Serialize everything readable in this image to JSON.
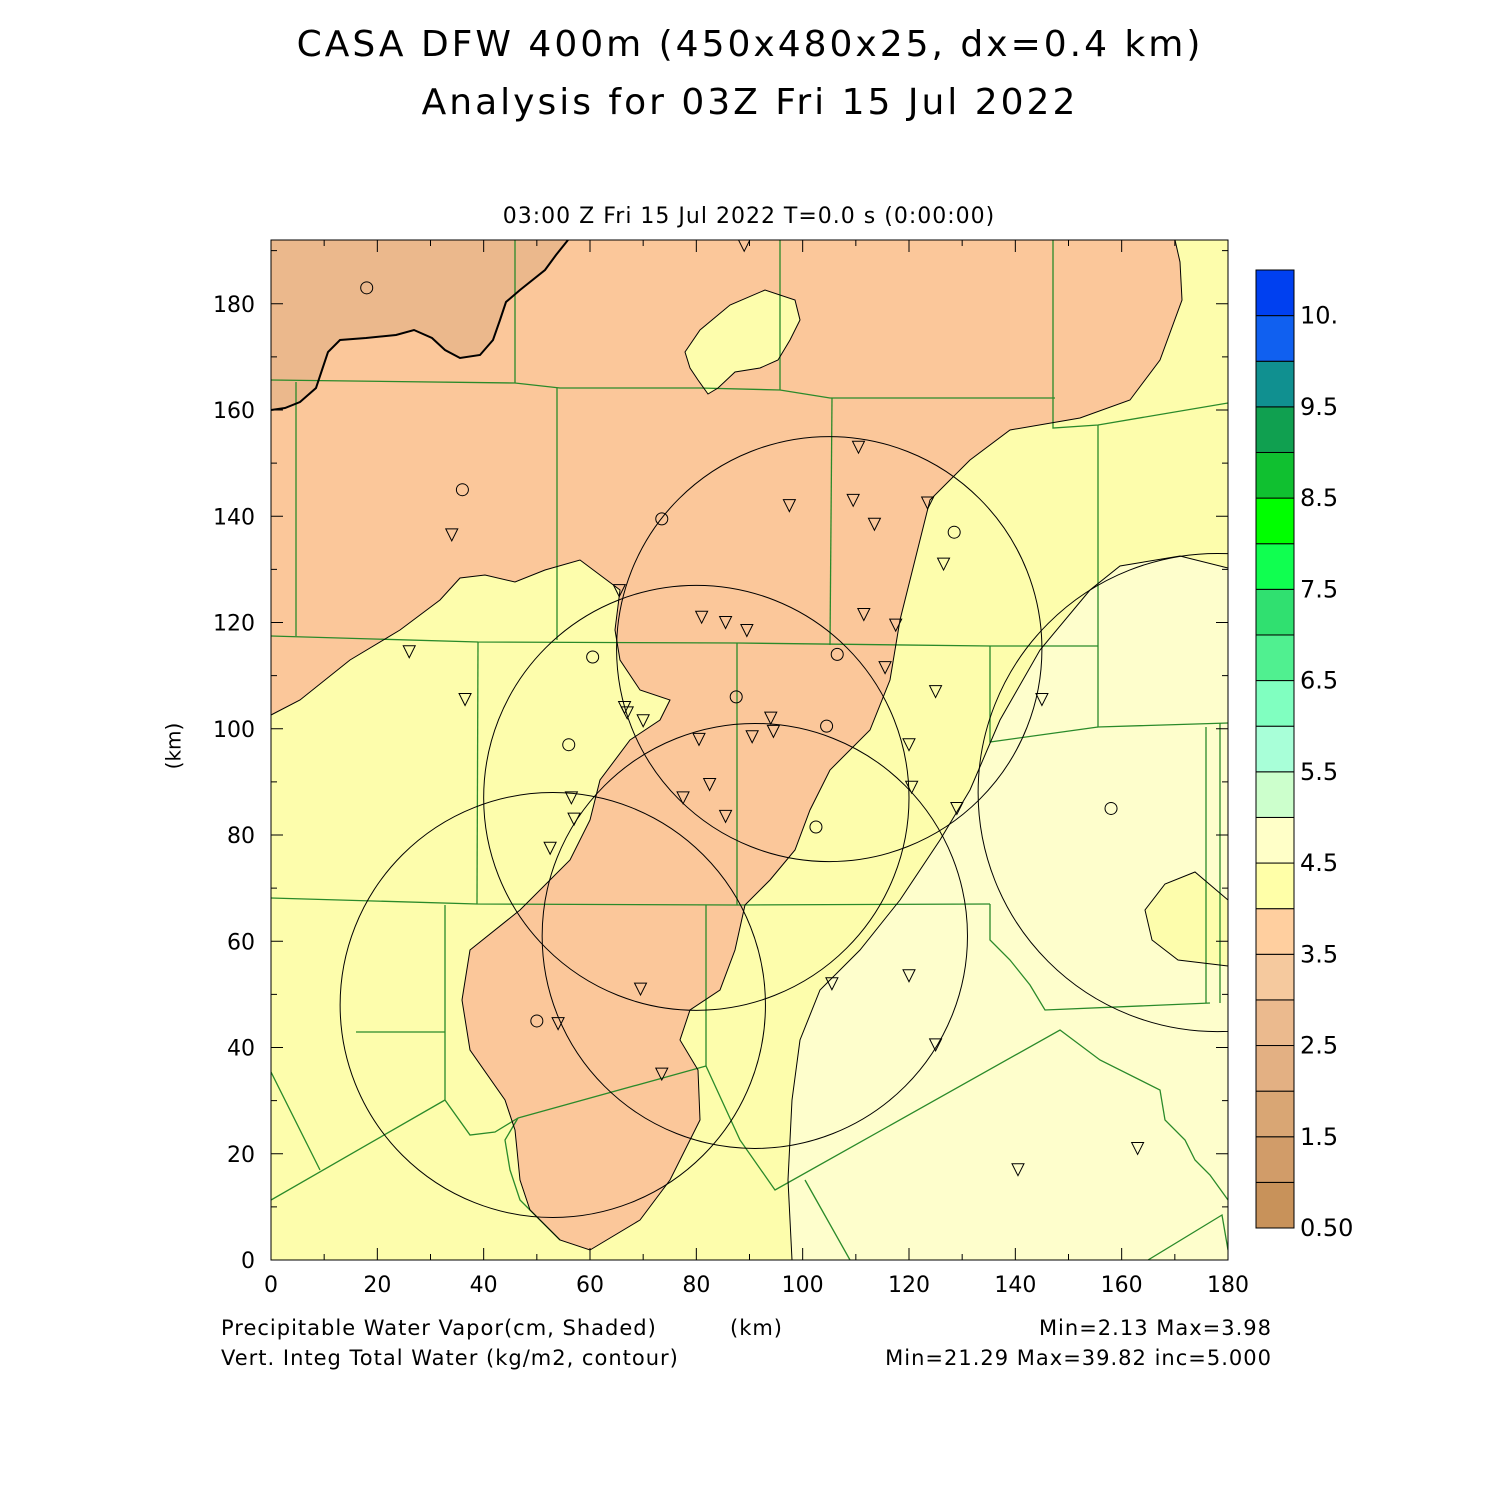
{
  "header": {
    "title_line1": "CASA DFW 400m (450x480x25, dx=0.4 km)",
    "title_line2": "Analysis for 03Z Fri 15 Jul 2022",
    "timestamp": "03:00 Z Fri 15 Jul 2022    T=0.0 s (0:00:00)"
  },
  "axes": {
    "x_ticks": [
      "0",
      "20",
      "40",
      "60",
      "80",
      "100",
      "120",
      "140",
      "160",
      "180"
    ],
    "y_ticks": [
      "0",
      "20",
      "40",
      "60",
      "80",
      "100",
      "120",
      "140",
      "160",
      "180"
    ],
    "y_label": "(km)",
    "x_label": "(km)"
  },
  "footer": {
    "shaded_field": "Precipitable Water Vapor(cm, Shaded)",
    "contour_field": "Vert. Integ Total Water (kg/m2, contour)",
    "shaded_stats": "Min=2.13 Max=3.98",
    "contour_stats": "Min=21.29 Max=39.82 inc=5.000"
  },
  "colorbar": {
    "labels": [
      "10.",
      "9.5",
      "8.5",
      "7.5",
      "6.5",
      "5.5",
      "4.5",
      "3.5",
      "2.5",
      "1.5",
      "0.50"
    ],
    "colors": [
      "#c8925a",
      "#d19c69",
      "#d9a674",
      "#e3b083",
      "#ebba8e",
      "#f5c99e",
      "#ffcf9f",
      "#ffffa8",
      "#ffffc8",
      "#ccffcc",
      "#a8ffd8",
      "#80ffc0",
      "#50f090",
      "#30e070",
      "#10ff50",
      "#00ff00",
      "#10c030",
      "#10a050",
      "#109090",
      "#1060f0",
      "#0040f0"
    ]
  },
  "map": {
    "fill_dark": "#ebb88c",
    "fill_orange": "#fbc79a",
    "fill_yellow": "#fdfdac",
    "fill_pale": "#fefecc",
    "county_color": "#2a8a2a",
    "radar_circles": [
      {
        "cx": 105,
        "cy": 115,
        "r": 40
      },
      {
        "cx": 80,
        "cy": 87,
        "r": 40
      },
      {
        "cx": 91,
        "cy": 61,
        "r": 40
      },
      {
        "cx": 53,
        "cy": 48,
        "r": 40
      },
      {
        "cx": 178,
        "cy": 88,
        "r": 45
      }
    ],
    "stations_circle": [
      [
        18,
        183
      ],
      [
        36,
        145
      ],
      [
        73.5,
        139.5
      ],
      [
        128.5,
        137
      ],
      [
        60.5,
        113.5
      ],
      [
        106.5,
        114
      ],
      [
        87.5,
        106
      ],
      [
        104.5,
        100.5
      ],
      [
        56,
        97
      ],
      [
        102.5,
        81.5
      ],
      [
        158,
        85
      ],
      [
        50,
        45
      ]
    ],
    "stations_triangle": [
      [
        89,
        191
      ],
      [
        110.5,
        153
      ],
      [
        109.5,
        143
      ],
      [
        97.5,
        142
      ],
      [
        123.5,
        142.5
      ],
      [
        113.5,
        138.5
      ],
      [
        34,
        136.5
      ],
      [
        126.5,
        131
      ],
      [
        65.5,
        126
      ],
      [
        111.5,
        121.5
      ],
      [
        81,
        121
      ],
      [
        85.5,
        120
      ],
      [
        89.5,
        118.5
      ],
      [
        117.5,
        119.5
      ],
      [
        26,
        114.5
      ],
      [
        115.5,
        111.5
      ],
      [
        125,
        107
      ],
      [
        36.5,
        105.5
      ],
      [
        145,
        105.5
      ],
      [
        66.5,
        104
      ],
      [
        67,
        103
      ],
      [
        70,
        101.5
      ],
      [
        94,
        102
      ],
      [
        94.5,
        99.5
      ],
      [
        90.5,
        98.5
      ],
      [
        80.5,
        98
      ],
      [
        120,
        97
      ],
      [
        82.5,
        89.5
      ],
      [
        77.5,
        87
      ],
      [
        120.5,
        89
      ],
      [
        56.5,
        87
      ],
      [
        129,
        85
      ],
      [
        57,
        83
      ],
      [
        85.5,
        83.5
      ],
      [
        52.5,
        77.5
      ],
      [
        120,
        53.5
      ],
      [
        105.5,
        52
      ],
      [
        69.5,
        51
      ],
      [
        54,
        44.5
      ],
      [
        125,
        40.5
      ],
      [
        73.5,
        35
      ],
      [
        163,
        21
      ],
      [
        140.5,
        17
      ]
    ]
  }
}
